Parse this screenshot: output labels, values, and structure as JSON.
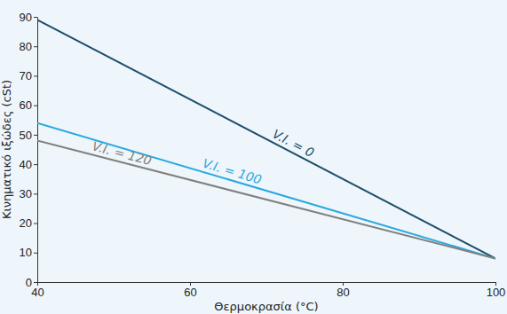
{
  "chart_data": {
    "type": "line",
    "x_label": "Θερμοκρασία (°C)",
    "y_label": "Κινηματικό ιξώδες (cSt)",
    "x": [
      40,
      100
    ],
    "series": [
      {
        "name": "V.I. = 0",
        "color": "#1d4e6b",
        "values": [
          89,
          8
        ],
        "line_style": "solid"
      },
      {
        "name": "V.I. = 100",
        "color": "#29a8e0",
        "values": [
          54,
          8
        ],
        "line_style": "solid"
      },
      {
        "name": "V.I. = 120",
        "color": "#808080",
        "values": [
          48,
          8
        ],
        "line_style": "solid"
      }
    ],
    "xlim": [
      40,
      100
    ],
    "ylim": [
      0,
      90
    ],
    "xticks": [
      40,
      60,
      80,
      100
    ],
    "yticks": [
      0,
      10,
      20,
      30,
      40,
      50,
      60,
      70,
      80,
      90
    ],
    "grid": false
  }
}
